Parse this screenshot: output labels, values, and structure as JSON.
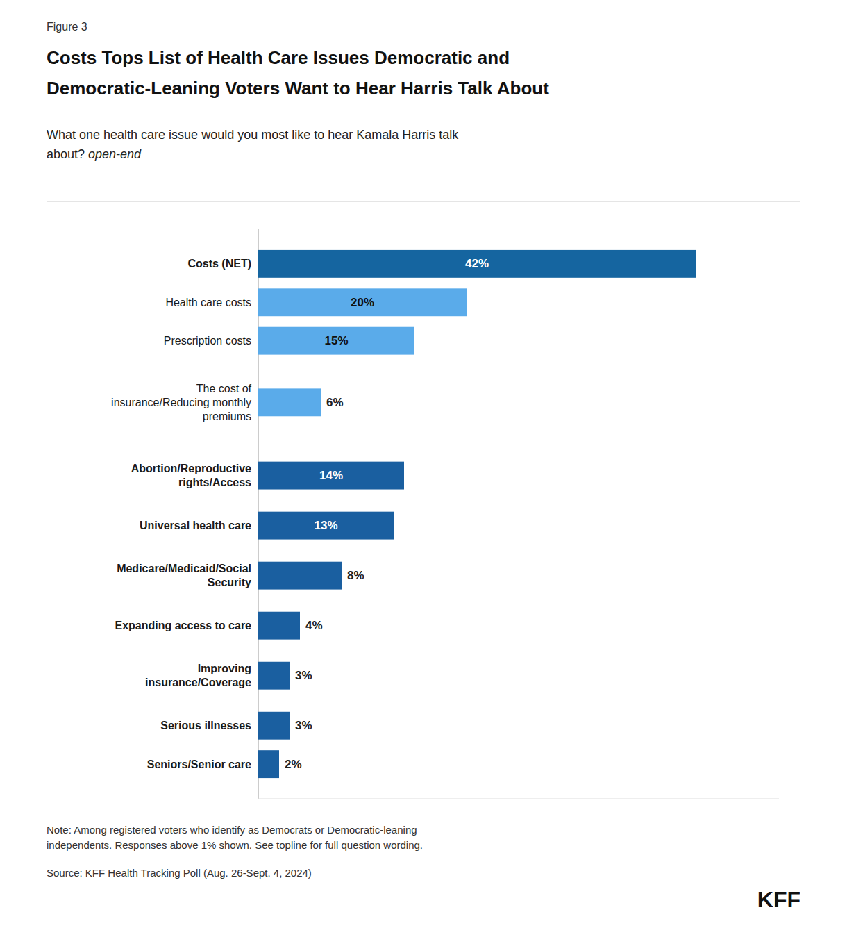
{
  "chart_data": {
    "type": "bar",
    "orientation": "horizontal",
    "figure_label": "Figure 3",
    "title": "Costs Tops List of Health Care Issues Democratic and\nDemocratic-Leaning Voters Want to Hear Harris Talk About",
    "subtitle": "What one health care issue would you most like to hear Kamala Harris talk\nabout? ",
    "subtitle_emphasis": "open-end",
    "categories": [
      "Costs (NET)",
      "Health care costs",
      "Prescription costs",
      "The cost of\ninsurance/Reducing monthly\npremiums",
      "Abortion/Reproductive\nrights/Access",
      "Universal health care",
      "Medicare/Medicaid/Social\nSecurity",
      "Expanding access to care",
      "Improving\ninsurance/Coverage",
      "Serious illnesses",
      "Seniors/Senior care"
    ],
    "values": [
      42,
      20,
      15,
      6,
      14,
      13,
      8,
      4,
      3,
      3,
      2
    ],
    "value_labels": [
      "42%",
      "20%",
      "15%",
      "6%",
      "14%",
      "13%",
      "8%",
      "4%",
      "3%",
      "3%",
      "2%"
    ],
    "colors": [
      "#1565a0",
      "#5aabea",
      "#5aabea",
      "#5aabea",
      "#1a5fa0",
      "#1a5fa0",
      "#1a5fa0",
      "#1a5fa0",
      "#1a5fa0",
      "#1a5fa0",
      "#1a5fa0"
    ],
    "xlim": [
      0,
      50
    ],
    "data_labels": true,
    "tick_labels": false,
    "grid": false,
    "note": "Note: Among registered voters who identify as Democrats or Democratic-leaning\nindependents. Responses above 1% shown. See topline for full question wording.",
    "source": "Source: KFF Health Tracking Poll (Aug. 26-Sept. 4, 2024)",
    "logo": "KFF"
  }
}
